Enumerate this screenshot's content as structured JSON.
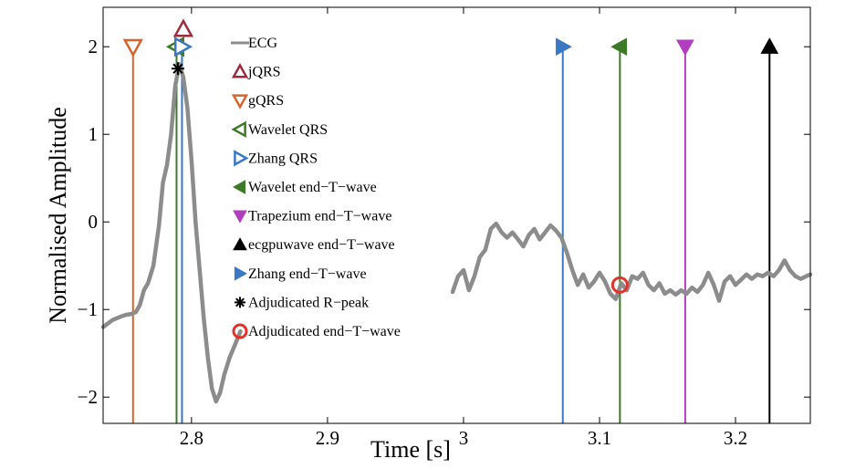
{
  "chart_data": {
    "type": "line",
    "xlabel": "Time [s]",
    "ylabel": "Normalised Amplitude",
    "xlim": [
      2.735,
      3.255
    ],
    "ylim": [
      -2.3,
      2.45
    ],
    "xticks": [
      2.8,
      2.9,
      3.0,
      3.1,
      3.2
    ],
    "xtick_labels": [
      "2.8",
      "2.9",
      "3",
      "3.1",
      "3.2"
    ],
    "yticks": [
      -2,
      -1,
      0,
      1,
      2
    ],
    "ytick_labels": [
      "−2",
      "−1",
      "0",
      "1",
      "2"
    ],
    "grid": false,
    "legend_position": "top-left",
    "series": [
      {
        "name": "ECG",
        "color": "#8c8c8c",
        "segments": [
          [
            [
              2.735,
              -1.2
            ],
            [
              2.742,
              -1.12
            ],
            [
              2.748,
              -1.08
            ],
            [
              2.752,
              -1.06
            ],
            [
              2.756,
              -1.05
            ],
            [
              2.759,
              -1.03
            ],
            [
              2.762,
              -0.95
            ],
            [
              2.765,
              -0.78
            ],
            [
              2.768,
              -0.7
            ],
            [
              2.772,
              -0.5
            ],
            [
              2.776,
              -0.05
            ],
            [
              2.779,
              0.45
            ],
            [
              2.782,
              0.65
            ],
            [
              2.785,
              1.0
            ],
            [
              2.788,
              1.55
            ],
            [
              2.791,
              1.8
            ],
            [
              2.794,
              1.65
            ],
            [
              2.797,
              1.3
            ],
            [
              2.8,
              0.7
            ],
            [
              2.803,
              0.0
            ],
            [
              2.806,
              -0.55
            ],
            [
              2.809,
              -1.1
            ],
            [
              2.812,
              -1.55
            ],
            [
              2.815,
              -1.9
            ],
            [
              2.818,
              -2.05
            ],
            [
              2.821,
              -1.95
            ],
            [
              2.824,
              -1.75
            ],
            [
              2.828,
              -1.55
            ],
            [
              2.832,
              -1.4
            ],
            [
              2.836,
              -1.25
            ]
          ],
          [
            [
              2.992,
              -0.8
            ],
            [
              2.996,
              -0.62
            ],
            [
              3.0,
              -0.55
            ],
            [
              3.004,
              -0.78
            ],
            [
              3.008,
              -0.62
            ],
            [
              3.012,
              -0.4
            ],
            [
              3.016,
              -0.32
            ],
            [
              3.02,
              -0.08
            ],
            [
              3.024,
              -0.02
            ],
            [
              3.028,
              -0.12
            ],
            [
              3.032,
              -0.18
            ],
            [
              3.036,
              -0.12
            ],
            [
              3.04,
              -0.2
            ],
            [
              3.044,
              -0.28
            ],
            [
              3.048,
              -0.15
            ],
            [
              3.052,
              -0.08
            ],
            [
              3.056,
              -0.2
            ],
            [
              3.06,
              -0.12
            ],
            [
              3.064,
              -0.04
            ],
            [
              3.068,
              -0.1
            ],
            [
              3.072,
              -0.18
            ],
            [
              3.076,
              -0.35
            ],
            [
              3.08,
              -0.55
            ],
            [
              3.084,
              -0.72
            ],
            [
              3.088,
              -0.6
            ],
            [
              3.092,
              -0.75
            ],
            [
              3.096,
              -0.68
            ],
            [
              3.1,
              -0.58
            ],
            [
              3.104,
              -0.68
            ],
            [
              3.108,
              -0.82
            ],
            [
              3.112,
              -0.88
            ],
            [
              3.116,
              -0.7
            ],
            [
              3.12,
              -0.78
            ],
            [
              3.124,
              -0.62
            ],
            [
              3.128,
              -0.65
            ],
            [
              3.132,
              -0.58
            ],
            [
              3.136,
              -0.72
            ],
            [
              3.14,
              -0.78
            ],
            [
              3.144,
              -0.7
            ],
            [
              3.148,
              -0.82
            ],
            [
              3.152,
              -0.78
            ],
            [
              3.156,
              -0.83
            ],
            [
              3.16,
              -0.78
            ],
            [
              3.164,
              -0.82
            ],
            [
              3.168,
              -0.75
            ],
            [
              3.172,
              -0.8
            ],
            [
              3.176,
              -0.72
            ],
            [
              3.18,
              -0.58
            ],
            [
              3.184,
              -0.72
            ],
            [
              3.188,
              -0.9
            ],
            [
              3.192,
              -0.68
            ],
            [
              3.196,
              -0.62
            ],
            [
              3.2,
              -0.72
            ],
            [
              3.204,
              -0.66
            ],
            [
              3.208,
              -0.6
            ],
            [
              3.212,
              -0.65
            ],
            [
              3.216,
              -0.6
            ],
            [
              3.22,
              -0.62
            ],
            [
              3.224,
              -0.58
            ],
            [
              3.228,
              -0.62
            ],
            [
              3.232,
              -0.55
            ],
            [
              3.236,
              -0.44
            ],
            [
              3.24,
              -0.55
            ],
            [
              3.244,
              -0.62
            ],
            [
              3.248,
              -0.65
            ],
            [
              3.252,
              -0.62
            ],
            [
              3.255,
              -0.6
            ]
          ]
        ]
      }
    ],
    "markers": [
      {
        "name": "jQRS",
        "symbol": "triangle-up-open",
        "color": "#9e2a3a",
        "x": 2.794,
        "y": 2.2,
        "stem": false
      },
      {
        "name": "gQRS",
        "symbol": "triangle-down-open",
        "color": "#d9622b",
        "x": 2.757,
        "y": 2.0,
        "stem": true
      },
      {
        "name": "Wavelet QRS",
        "symbol": "triangle-left-open",
        "color": "#3c7a28",
        "x": 2.789,
        "y": 2.0,
        "stem": true
      },
      {
        "name": "Zhang QRS",
        "symbol": "triangle-right-open",
        "color": "#3a78c4",
        "x": 2.793,
        "y": 2.0,
        "stem": true
      },
      {
        "name": "Wavelet end−T−wave",
        "symbol": "triangle-left",
        "color": "#3c7a28",
        "x": 3.115,
        "y": 2.0,
        "stem": true
      },
      {
        "name": "Trapezium end−T−wave",
        "symbol": "triangle-down",
        "color": "#b13dbf",
        "x": 3.163,
        "y": 2.0,
        "stem": true
      },
      {
        "name": "ecgpuwave end−T−wave",
        "symbol": "triangle-up",
        "color": "#000000",
        "x": 3.225,
        "y": 2.0,
        "stem": true
      },
      {
        "name": "Zhang end−T−wave",
        "symbol": "triangle-right",
        "color": "#3a78c4",
        "x": 3.073,
        "y": 2.0,
        "stem": true
      },
      {
        "name": "Adjudicated R−peak",
        "symbol": "asterisk",
        "color": "#000000",
        "x": 2.79,
        "y": 1.75,
        "stem": false
      },
      {
        "name": "Adjudicated end−T−wave",
        "symbol": "circle-open",
        "color": "#e8302a",
        "x": 3.115,
        "y": -0.72,
        "stem": false
      }
    ],
    "legend": [
      {
        "label": "ECG",
        "symbol": "line",
        "color": "#8c8c8c"
      },
      {
        "label": "jQRS",
        "symbol": "triangle-up-open",
        "color": "#9e2a3a"
      },
      {
        "label": "gQRS",
        "symbol": "triangle-down-open",
        "color": "#d9622b"
      },
      {
        "label": "Wavelet QRS",
        "symbol": "triangle-left-open",
        "color": "#3c7a28"
      },
      {
        "label": "Zhang QRS",
        "symbol": "triangle-right-open",
        "color": "#3a78c4"
      },
      {
        "label": "Wavelet end−T−wave",
        "symbol": "triangle-left",
        "color": "#3c7a28"
      },
      {
        "label": "Trapezium end−T−wave",
        "symbol": "triangle-down",
        "color": "#b13dbf"
      },
      {
        "label": "ecgpuwave end−T−wave",
        "symbol": "triangle-up",
        "color": "#000000"
      },
      {
        "label": "Zhang end−T−wave",
        "symbol": "triangle-right",
        "color": "#3a78c4"
      },
      {
        "label": "Adjudicated R−peak",
        "symbol": "asterisk",
        "color": "#000000"
      },
      {
        "label": "Adjudicated end−T−wave",
        "symbol": "circle-open",
        "color": "#e8302a"
      }
    ]
  }
}
